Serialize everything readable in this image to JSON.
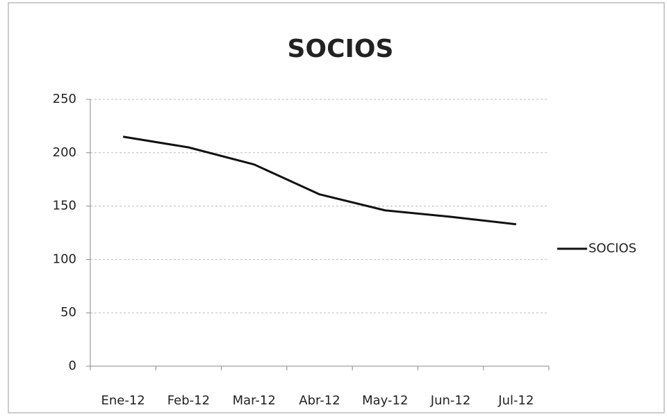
{
  "chart_data": {
    "type": "line",
    "title": "SOCIOS",
    "categories": [
      "Ene-12",
      "Feb-12",
      "Mar-12",
      "Abr-12",
      "May-12",
      "Jun-12",
      "Jul-12"
    ],
    "series": [
      {
        "name": "SOCIOS",
        "color": "#111111",
        "values": [
          215,
          205,
          189,
          161,
          146,
          140,
          133
        ]
      }
    ],
    "ylim": [
      0,
      250
    ],
    "yticks": [
      0,
      50,
      100,
      150,
      200,
      250
    ],
    "grid": true,
    "legend": "right"
  }
}
